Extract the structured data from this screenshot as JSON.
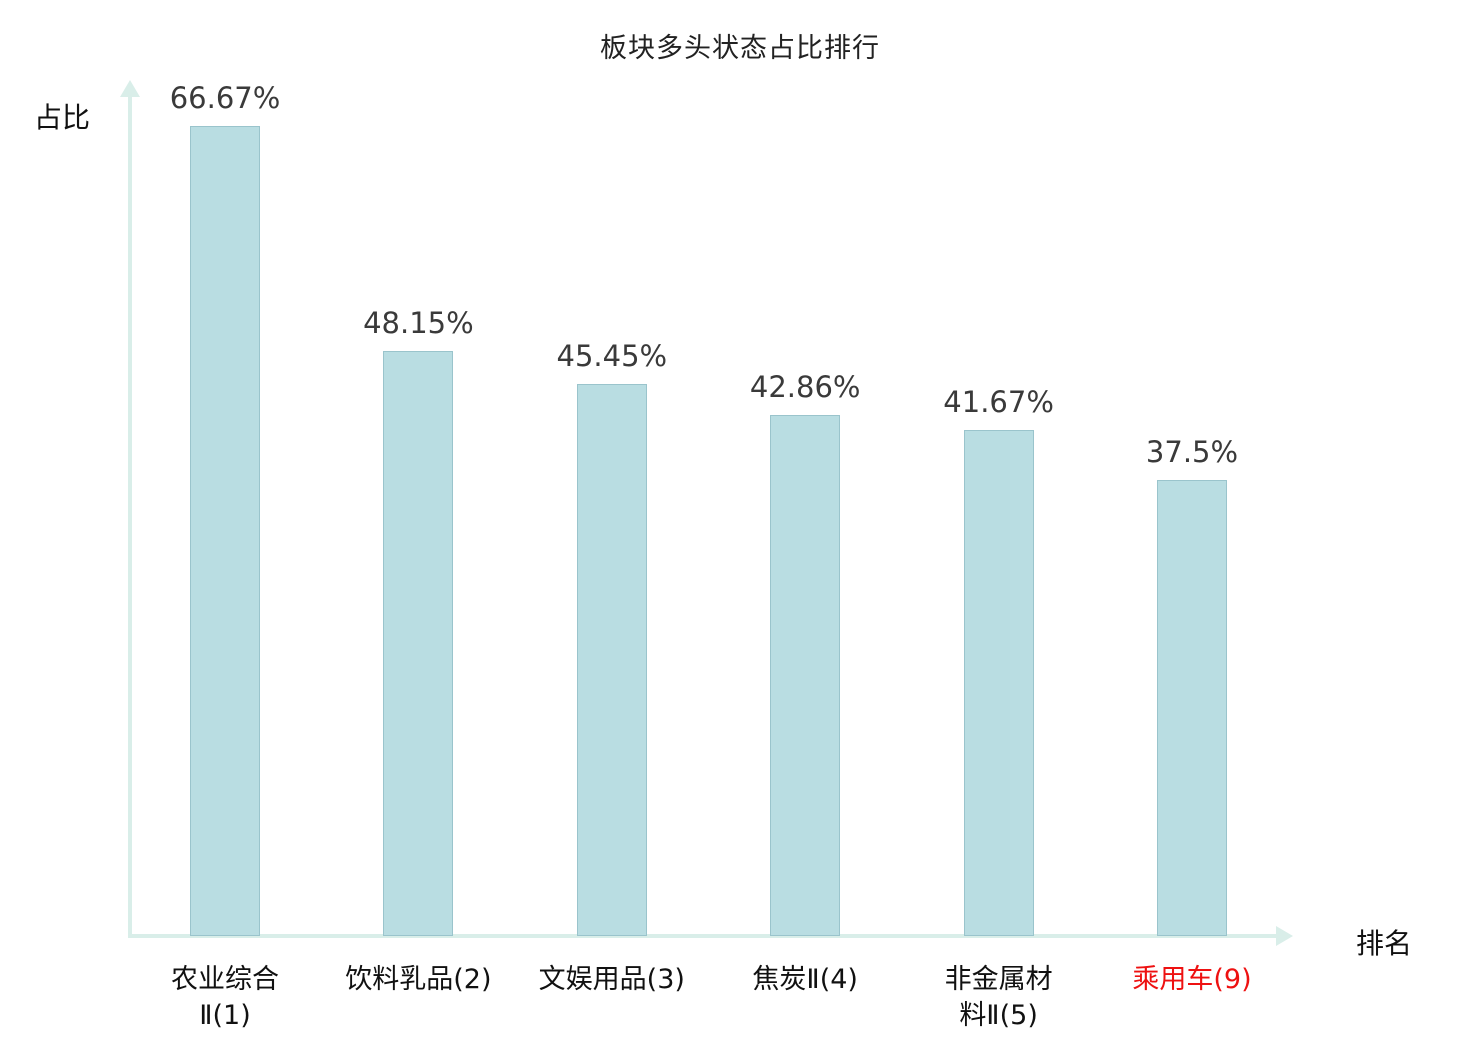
{
  "chart": {
    "title": "板块多头状态占比排行",
    "y_axis_label": "占比",
    "x_axis_label": "排名"
  },
  "chart_data": {
    "type": "bar",
    "title": "板块多头状态占比排行",
    "xlabel": "排名",
    "ylabel": "占比",
    "categories": [
      "农业综合Ⅱ(1)",
      "饮料乳品(2)",
      "文娱用品(3)",
      "焦炭Ⅱ(4)",
      "非金属材料Ⅱ(5)",
      "乘用车(9)"
    ],
    "tick_labels": [
      "农业综合\nⅡ(1)",
      "饮料乳品(2)",
      "文娱用品(3)",
      "焦炭Ⅱ(4)",
      "非金属材\n料Ⅱ(5)",
      "乘用车(9)"
    ],
    "values": [
      66.67,
      48.15,
      45.45,
      42.86,
      41.67,
      37.5
    ],
    "value_labels": [
      "66.67%",
      "48.15%",
      "45.45%",
      "42.86%",
      "41.67%",
      "37.5%"
    ],
    "ylim": [
      0,
      70
    ],
    "grid": false,
    "legend_position": "none",
    "bar_color": "#b9dde2",
    "axis_color": "#d9eee9",
    "value_label_color": "#3a3a3a",
    "tick_label_color": "#111111",
    "highlight_index": 5,
    "highlight_color": "#ee1111"
  }
}
